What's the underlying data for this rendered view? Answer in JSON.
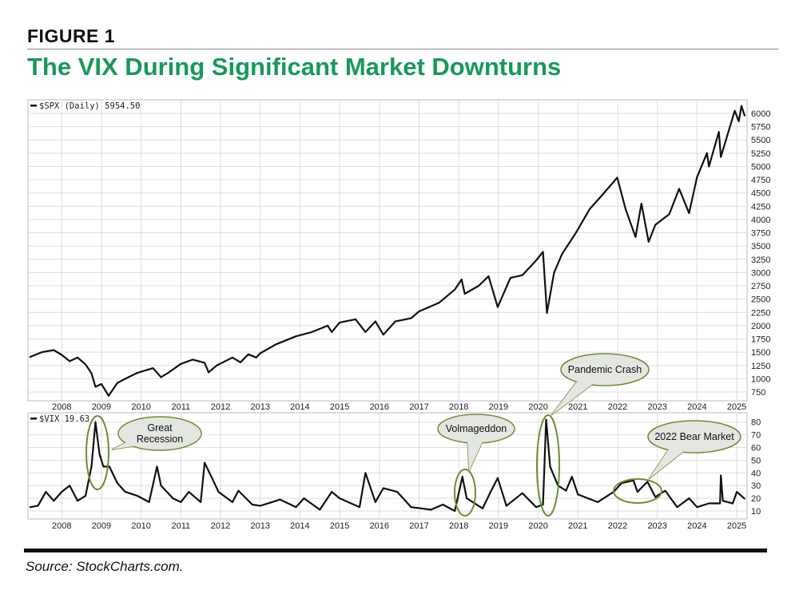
{
  "figure_label": "FIGURE 1",
  "title": "The VIX During Significant Market Downturns",
  "source": "Source: StockCharts.com.",
  "colors": {
    "title": "#17995a",
    "annotation": "#6a8f35",
    "bubble_fill": "#e4e6e2",
    "line": "#111111",
    "grid": "#dddddd"
  },
  "chart_data": [
    {
      "type": "line",
      "legend": "$SPX (Daily) 5954.50",
      "x_ticks": [
        "2008",
        "2009",
        "2010",
        "2011",
        "2012",
        "2013",
        "2014",
        "2015",
        "2016",
        "2017",
        "2018",
        "2019",
        "2020",
        "2021",
        "2022",
        "2023",
        "2024",
        "2025"
      ],
      "y_ticks": [
        750,
        1000,
        1250,
        1500,
        1750,
        2000,
        2250,
        2500,
        2750,
        3000,
        3250,
        3500,
        3750,
        4000,
        4250,
        4500,
        4750,
        5000,
        5250,
        5500,
        5750,
        6000
      ],
      "xlim": [
        2007.15,
        2025.26
      ],
      "ylim": [
        650,
        6250
      ],
      "grid": true,
      "series": [
        {
          "name": "$SPX",
          "points": [
            [
              2007.2,
              1410
            ],
            [
              2007.5,
              1500
            ],
            [
              2007.8,
              1540
            ],
            [
              2008.0,
              1450
            ],
            [
              2008.2,
              1330
            ],
            [
              2008.4,
              1400
            ],
            [
              2008.6,
              1270
            ],
            [
              2008.75,
              1100
            ],
            [
              2008.85,
              850
            ],
            [
              2009.0,
              900
            ],
            [
              2009.18,
              680
            ],
            [
              2009.4,
              920
            ],
            [
              2009.6,
              1000
            ],
            [
              2009.9,
              1110
            ],
            [
              2010.3,
              1200
            ],
            [
              2010.5,
              1030
            ],
            [
              2010.7,
              1120
            ],
            [
              2011.0,
              1280
            ],
            [
              2011.3,
              1360
            ],
            [
              2011.6,
              1300
            ],
            [
              2011.7,
              1120
            ],
            [
              2011.9,
              1250
            ],
            [
              2012.3,
              1400
            ],
            [
              2012.5,
              1310
            ],
            [
              2012.7,
              1460
            ],
            [
              2012.9,
              1400
            ],
            [
              2013.0,
              1480
            ],
            [
              2013.4,
              1650
            ],
            [
              2013.9,
              1800
            ],
            [
              2014.3,
              1880
            ],
            [
              2014.7,
              2000
            ],
            [
              2014.8,
              1880
            ],
            [
              2015.0,
              2060
            ],
            [
              2015.4,
              2120
            ],
            [
              2015.65,
              1880
            ],
            [
              2015.9,
              2080
            ],
            [
              2016.1,
              1830
            ],
            [
              2016.4,
              2080
            ],
            [
              2016.8,
              2140
            ],
            [
              2017.0,
              2270
            ],
            [
              2017.5,
              2430
            ],
            [
              2017.9,
              2680
            ],
            [
              2018.07,
              2870
            ],
            [
              2018.15,
              2600
            ],
            [
              2018.5,
              2750
            ],
            [
              2018.75,
              2930
            ],
            [
              2018.98,
              2350
            ],
            [
              2019.3,
              2900
            ],
            [
              2019.6,
              2950
            ],
            [
              2019.95,
              3230
            ],
            [
              2020.12,
              3390
            ],
            [
              2020.22,
              2240
            ],
            [
              2020.4,
              3000
            ],
            [
              2020.6,
              3350
            ],
            [
              2020.95,
              3750
            ],
            [
              2021.3,
              4200
            ],
            [
              2021.6,
              4450
            ],
            [
              2021.99,
              4790
            ],
            [
              2022.2,
              4200
            ],
            [
              2022.45,
              3670
            ],
            [
              2022.6,
              4300
            ],
            [
              2022.78,
              3580
            ],
            [
              2022.95,
              3900
            ],
            [
              2023.3,
              4100
            ],
            [
              2023.55,
              4580
            ],
            [
              2023.8,
              4120
            ],
            [
              2024.0,
              4800
            ],
            [
              2024.25,
              5250
            ],
            [
              2024.3,
              5000
            ],
            [
              2024.55,
              5650
            ],
            [
              2024.6,
              5180
            ],
            [
              2024.95,
              6050
            ],
            [
              2025.05,
              5850
            ],
            [
              2025.12,
              6140
            ],
            [
              2025.2,
              5954.5
            ]
          ]
        }
      ]
    },
    {
      "type": "line",
      "legend": "$VIX 19.63",
      "x_ticks": [
        "2008",
        "2009",
        "2010",
        "2011",
        "2012",
        "2013",
        "2014",
        "2015",
        "2016",
        "2017",
        "2018",
        "2019",
        "2020",
        "2021",
        "2022",
        "2023",
        "2024",
        "2025"
      ],
      "y_ticks": [
        10,
        20,
        30,
        40,
        50,
        60,
        70,
        80
      ],
      "xlim": [
        2007.15,
        2025.26
      ],
      "ylim": [
        3,
        87
      ],
      "grid": true,
      "series": [
        {
          "name": "$VIX",
          "points": [
            [
              2007.2,
              13
            ],
            [
              2007.4,
              14
            ],
            [
              2007.6,
              25
            ],
            [
              2007.8,
              18
            ],
            [
              2008.0,
              25
            ],
            [
              2008.2,
              30
            ],
            [
              2008.4,
              18
            ],
            [
              2008.6,
              22
            ],
            [
              2008.75,
              45
            ],
            [
              2008.85,
              80
            ],
            [
              2008.95,
              55
            ],
            [
              2009.05,
              45
            ],
            [
              2009.2,
              45
            ],
            [
              2009.4,
              32
            ],
            [
              2009.6,
              25
            ],
            [
              2009.9,
              22
            ],
            [
              2010.2,
              17
            ],
            [
              2010.4,
              45
            ],
            [
              2010.5,
              30
            ],
            [
              2010.8,
              20
            ],
            [
              2011.0,
              17
            ],
            [
              2011.2,
              25
            ],
            [
              2011.5,
              17
            ],
            [
              2011.6,
              48
            ],
            [
              2011.8,
              35
            ],
            [
              2011.95,
              25
            ],
            [
              2012.3,
              17
            ],
            [
              2012.45,
              26
            ],
            [
              2012.8,
              15
            ],
            [
              2013.0,
              14
            ],
            [
              2013.5,
              19
            ],
            [
              2013.9,
              13
            ],
            [
              2014.1,
              20
            ],
            [
              2014.5,
              11
            ],
            [
              2014.8,
              25
            ],
            [
              2015.0,
              20
            ],
            [
              2015.5,
              13
            ],
            [
              2015.65,
              40
            ],
            [
              2015.9,
              17
            ],
            [
              2016.1,
              28
            ],
            [
              2016.45,
              25
            ],
            [
              2016.8,
              13
            ],
            [
              2017.3,
              11
            ],
            [
              2017.6,
              15
            ],
            [
              2017.9,
              10
            ],
            [
              2018.09,
              37
            ],
            [
              2018.2,
              20
            ],
            [
              2018.6,
              12
            ],
            [
              2018.8,
              25
            ],
            [
              2018.98,
              36
            ],
            [
              2019.2,
              14
            ],
            [
              2019.6,
              24
            ],
            [
              2019.95,
              13
            ],
            [
              2020.12,
              15
            ],
            [
              2020.2,
              82
            ],
            [
              2020.3,
              45
            ],
            [
              2020.5,
              30
            ],
            [
              2020.7,
              26
            ],
            [
              2020.85,
              37
            ],
            [
              2021.0,
              23
            ],
            [
              2021.5,
              17
            ],
            [
              2021.9,
              25
            ],
            [
              2022.1,
              32
            ],
            [
              2022.4,
              34
            ],
            [
              2022.5,
              25
            ],
            [
              2022.75,
              33
            ],
            [
              2022.95,
              21
            ],
            [
              2023.2,
              26
            ],
            [
              2023.5,
              13
            ],
            [
              2023.8,
              20
            ],
            [
              2024.0,
              13
            ],
            [
              2024.3,
              16
            ],
            [
              2024.58,
              16
            ],
            [
              2024.6,
              38
            ],
            [
              2024.65,
              18
            ],
            [
              2024.9,
              16
            ],
            [
              2025.0,
              25
            ],
            [
              2025.2,
              19.63
            ]
          ]
        }
      ],
      "annotations": [
        {
          "text": "Great Recession",
          "lines": [
            "Great",
            "Recession"
          ],
          "date": 2008.9
        },
        {
          "text": "Volmageddon",
          "lines": [
            "Volmageddon"
          ],
          "date": 2018.1
        },
        {
          "text": "Pandemic Crash",
          "lines": [
            "Pandemic Crash"
          ],
          "date": 2020.2
        },
        {
          "text": "2022 Bear Market",
          "lines": [
            "2022 Bear Market"
          ],
          "date": 2022.5
        }
      ]
    }
  ]
}
